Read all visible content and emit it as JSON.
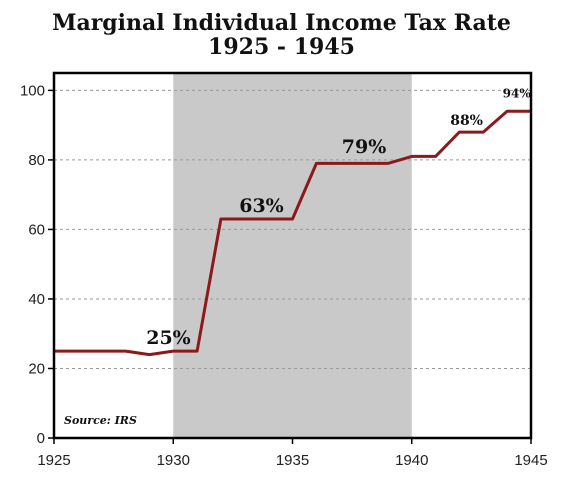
{
  "chart_data": {
    "type": "line",
    "title": "Marginal Individual Income Tax Rate",
    "subtitle": "1925 - 1945",
    "source": "Source: IRS",
    "xlim": [
      1925,
      1945
    ],
    "ylim": [
      0,
      105
    ],
    "x_ticks": [
      1925,
      1930,
      1935,
      1940,
      1945
    ],
    "y_ticks": [
      0,
      20,
      40,
      60,
      80,
      100
    ],
    "grid": "horizontal dashed",
    "shaded_region": {
      "start": 1930,
      "end": 1940,
      "color": "#c9c9c9"
    },
    "series": [
      {
        "color": "#8b1a1a",
        "x": [
          1925,
          1928,
          1929,
          1930,
          1931,
          1932,
          1935,
          1936,
          1939,
          1940,
          1941,
          1942,
          1943,
          1944,
          1945
        ],
        "y": [
          25,
          25,
          24,
          25,
          25,
          63,
          63,
          79,
          79,
          81,
          81,
          88,
          88,
          94,
          94
        ]
      }
    ],
    "annotations": [
      {
        "text": "25%",
        "x": 1929.8,
        "y": 27,
        "size": 19
      },
      {
        "text": "63%",
        "x": 1933.7,
        "y": 65,
        "size": 19
      },
      {
        "text": "79%",
        "x": 1938.0,
        "y": 82,
        "size": 19
      },
      {
        "text": "88%",
        "x": 1942.3,
        "y": 90,
        "size": 14
      },
      {
        "text": "94%",
        "x": 1944.4,
        "y": 98,
        "size": 12
      }
    ]
  }
}
